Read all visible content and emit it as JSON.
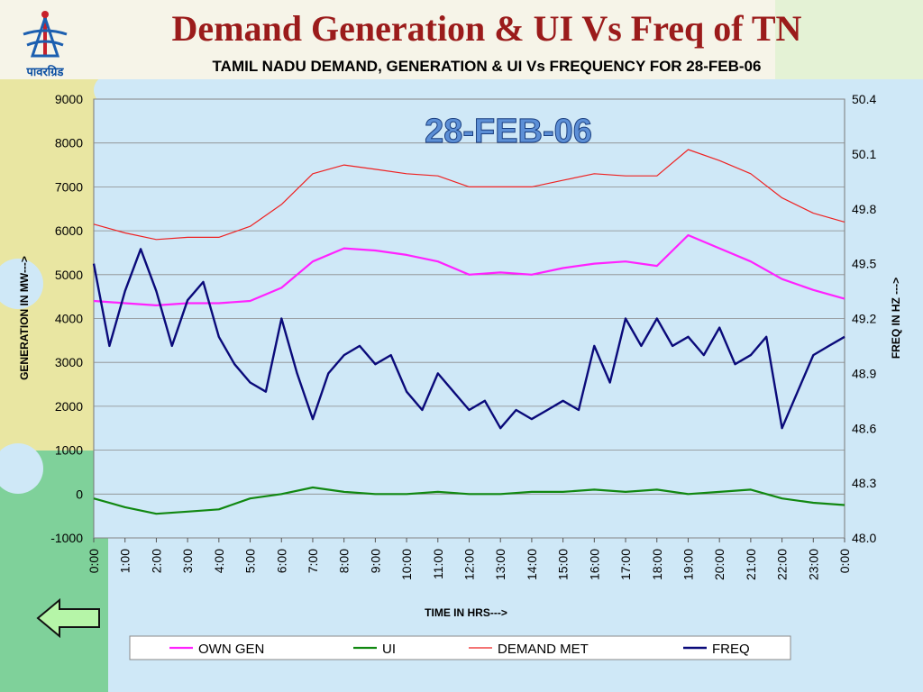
{
  "slide": {
    "title": "Demand Generation & UI Vs Freq of TN",
    "logo_text": "पावरग्रिड"
  },
  "nav": {
    "back_icon": "left-arrow-icon"
  },
  "colors": {
    "title": "#9b1b1b",
    "own_gen": "#ff22ff",
    "ui": "#118811",
    "demand_met": "#ee2222",
    "freq": "#0a0a7a",
    "plot_bg": "#cfe8f7",
    "back_arrow": "#b6f5a8"
  },
  "chart_data": {
    "type": "line",
    "title": "TAMIL NADU  DEMAND, GENERATION & UI Vs FREQUENCY FOR 28-FEB-06",
    "annotation": "28-FEB-06",
    "xlabel": "TIME IN HRS--->",
    "ylabel": "GENERATION IN MW--->",
    "y2label": "FREQ IN HZ --->",
    "ylim": [
      -1000,
      9000
    ],
    "y2lim": [
      48.0,
      50.4
    ],
    "yticks": [
      "9000",
      "8000",
      "7000",
      "6000",
      "5000",
      "4000",
      "3000",
      "2000",
      "1000",
      "0",
      "-1000"
    ],
    "y2ticks": [
      "50.4",
      "50.1",
      "49.8",
      "49.5",
      "49.2",
      "48.9",
      "48.6",
      "48.3",
      "48.0"
    ],
    "categories": [
      "0:00",
      "1:00",
      "2:00",
      "3:00",
      "4:00",
      "5:00",
      "6:00",
      "7:00",
      "8:00",
      "9:00",
      "10:00",
      "11:00",
      "12:00",
      "13:00",
      "14:00",
      "15:00",
      "16:00",
      "17:00",
      "18:00",
      "19:00",
      "20:00",
      "21:00",
      "22:00",
      "23:00",
      "0:00"
    ],
    "grid": true,
    "legend_position": "bottom",
    "series": [
      {
        "name": "OWN GEN",
        "axis": "left",
        "width": 2.2,
        "points": [
          [
            0,
            4400
          ],
          [
            1,
            4350
          ],
          [
            2,
            4300
          ],
          [
            3,
            4350
          ],
          [
            4,
            4350
          ],
          [
            5,
            4400
          ],
          [
            6,
            4700
          ],
          [
            7,
            5300
          ],
          [
            8,
            5600
          ],
          [
            9,
            5550
          ],
          [
            10,
            5450
          ],
          [
            11,
            5300
          ],
          [
            12,
            5000
          ],
          [
            13,
            5050
          ],
          [
            14,
            5000
          ],
          [
            15,
            5150
          ],
          [
            16,
            5250
          ],
          [
            17,
            5300
          ],
          [
            18,
            5200
          ],
          [
            19,
            5900
          ],
          [
            20,
            5600
          ],
          [
            21,
            5300
          ],
          [
            22,
            4900
          ],
          [
            23,
            4650
          ],
          [
            24,
            4450
          ]
        ]
      },
      {
        "name": "UI",
        "axis": "left",
        "width": 2.2,
        "points": [
          [
            0,
            -100
          ],
          [
            1,
            -300
          ],
          [
            2,
            -450
          ],
          [
            3,
            -400
          ],
          [
            4,
            -350
          ],
          [
            5,
            -100
          ],
          [
            6,
            0
          ],
          [
            7,
            150
          ],
          [
            8,
            50
          ],
          [
            9,
            0
          ],
          [
            10,
            0
          ],
          [
            11,
            50
          ],
          [
            12,
            0
          ],
          [
            13,
            0
          ],
          [
            14,
            50
          ],
          [
            15,
            50
          ],
          [
            16,
            100
          ],
          [
            17,
            50
          ],
          [
            18,
            100
          ],
          [
            19,
            0
          ],
          [
            20,
            50
          ],
          [
            21,
            100
          ],
          [
            22,
            -100
          ],
          [
            23,
            -200
          ],
          [
            24,
            -250
          ]
        ]
      },
      {
        "name": "DEMAND MET",
        "axis": "left",
        "width": 1.2,
        "points": [
          [
            0,
            6150
          ],
          [
            1,
            5950
          ],
          [
            2,
            5800
          ],
          [
            3,
            5850
          ],
          [
            4,
            5850
          ],
          [
            5,
            6100
          ],
          [
            6,
            6600
          ],
          [
            7,
            7300
          ],
          [
            8,
            7500
          ],
          [
            9,
            7400
          ],
          [
            10,
            7300
          ],
          [
            11,
            7250
          ],
          [
            12,
            7000
          ],
          [
            13,
            7000
          ],
          [
            14,
            7000
          ],
          [
            15,
            7150
          ],
          [
            16,
            7300
          ],
          [
            17,
            7250
          ],
          [
            18,
            7250
          ],
          [
            19,
            7850
          ],
          [
            20,
            7600
          ],
          [
            21,
            7300
          ],
          [
            22,
            6750
          ],
          [
            23,
            6400
          ],
          [
            24,
            6200
          ]
        ]
      },
      {
        "name": "FREQ",
        "axis": "right",
        "width": 2.4,
        "points": [
          [
            0,
            49.5
          ],
          [
            0.5,
            49.05
          ],
          [
            1,
            49.35
          ],
          [
            1.5,
            49.58
          ],
          [
            2,
            49.35
          ],
          [
            2.5,
            49.05
          ],
          [
            3,
            49.3
          ],
          [
            3.5,
            49.4
          ],
          [
            4,
            49.1
          ],
          [
            4.5,
            48.95
          ],
          [
            5,
            48.85
          ],
          [
            5.5,
            48.8
          ],
          [
            6,
            49.2
          ],
          [
            6.5,
            48.9
          ],
          [
            7,
            48.65
          ],
          [
            7.5,
            48.9
          ],
          [
            8,
            49.0
          ],
          [
            8.5,
            49.05
          ],
          [
            9,
            48.95
          ],
          [
            9.5,
            49.0
          ],
          [
            10,
            48.8
          ],
          [
            10.5,
            48.7
          ],
          [
            11,
            48.9
          ],
          [
            11.5,
            48.8
          ],
          [
            12,
            48.7
          ],
          [
            12.5,
            48.75
          ],
          [
            13,
            48.6
          ],
          [
            13.5,
            48.7
          ],
          [
            14,
            48.65
          ],
          [
            14.5,
            48.7
          ],
          [
            15,
            48.75
          ],
          [
            15.5,
            48.7
          ],
          [
            16,
            49.05
          ],
          [
            16.5,
            48.85
          ],
          [
            17,
            49.2
          ],
          [
            17.5,
            49.05
          ],
          [
            18,
            49.2
          ],
          [
            18.5,
            49.05
          ],
          [
            19,
            49.1
          ],
          [
            19.5,
            49.0
          ],
          [
            20,
            49.15
          ],
          [
            20.5,
            48.95
          ],
          [
            21,
            49.0
          ],
          [
            21.5,
            49.1
          ],
          [
            22,
            48.6
          ],
          [
            22.5,
            48.8
          ],
          [
            23,
            49.0
          ],
          [
            23.5,
            49.05
          ],
          [
            24,
            49.1
          ]
        ]
      }
    ]
  }
}
